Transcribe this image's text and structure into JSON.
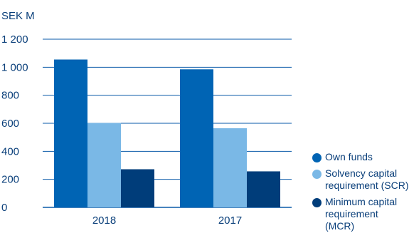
{
  "chart_data": {
    "type": "bar",
    "unit_label": "SEK M",
    "categories": [
      "2018",
      "2017"
    ],
    "series": [
      {
        "name": "Own funds",
        "values": [
          1055,
          985
        ],
        "color": "#0064b4"
      },
      {
        "name": "Solvency capital requirement (SCR)",
        "values": [
          602,
          565
        ],
        "color": "#7ab8e6"
      },
      {
        "name": "Minimum capital requirement (MCR)",
        "values": [
          272,
          257
        ],
        "color": "#003d7a"
      }
    ],
    "ylim": [
      0,
      1200
    ],
    "yticks": [
      0,
      200,
      400,
      600,
      800,
      1000,
      1200
    ],
    "ytick_labels": [
      "0",
      "200",
      "400",
      "600",
      "800",
      "1 000",
      "1 200"
    ],
    "grid": true,
    "legend_position": "right"
  }
}
